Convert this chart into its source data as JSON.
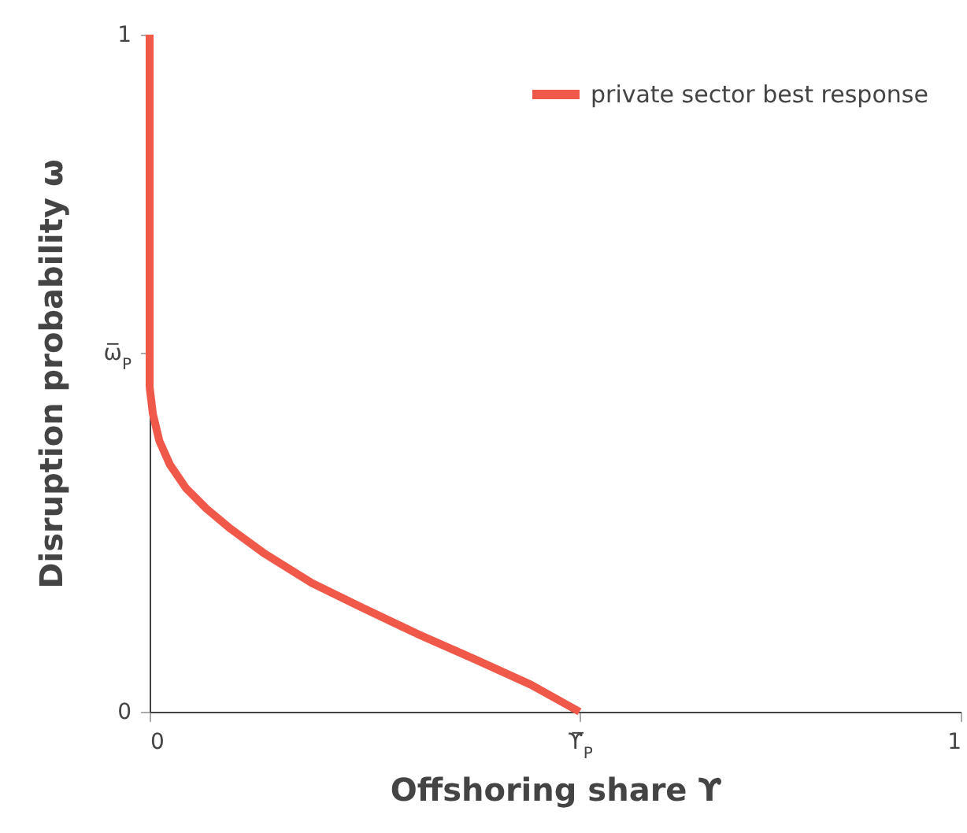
{
  "chart_data": {
    "type": "line",
    "xlabel": "Offshoring share ϒ",
    "ylabel": "Disruption probability ω",
    "x": [
      0,
      0,
      0.004,
      0.012,
      0.025,
      0.045,
      0.07,
      0.1,
      0.14,
      0.2,
      0.26,
      0.33,
      0.4,
      0.47,
      0.53
    ],
    "series": [
      {
        "name": "private sector best response",
        "color": "#f0584a",
        "values": [
          1,
          0.48,
          0.44,
          0.4,
          0.365,
          0.33,
          0.3,
          0.27,
          0.235,
          0.19,
          0.155,
          0.115,
          0.078,
          0.04,
          0
        ]
      }
    ],
    "xlim": [
      0,
      1
    ],
    "ylim": [
      0,
      1
    ],
    "xticks": [
      0,
      {
        "value": 0.53,
        "label": "ϒ̅$_{P}$"
      },
      1
    ],
    "yticks": [
      0,
      {
        "value": 0.53,
        "label": "ω̅$_{P}$"
      },
      1
    ],
    "grid": false,
    "legend": "top right",
    "marker": "none",
    "line_style": "solid"
  }
}
